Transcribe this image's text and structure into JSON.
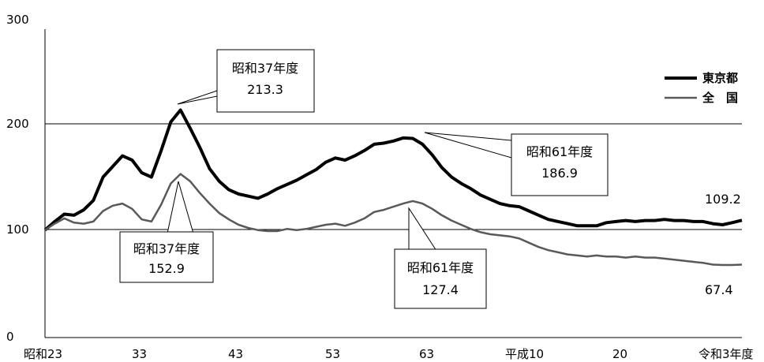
{
  "chart_data": {
    "type": "line",
    "title": "",
    "xlabel": "",
    "ylabel": "",
    "ylim": [
      0,
      300
    ],
    "y_ticks": [
      "0",
      "100",
      "200",
      "300"
    ],
    "x_ticks": [
      "昭和23",
      "33",
      "43",
      "53",
      "63",
      "平成10",
      "20",
      "令和3年度"
    ],
    "legend": {
      "placement": "top-right",
      "entries": [
        "東京都",
        "全　国"
      ]
    },
    "series": [
      {
        "name": "東京都",
        "color": "#000000",
        "values": [
          100,
          108,
          115,
          114,
          119,
          128,
          150,
          160,
          170,
          166,
          154,
          150,
          175,
          202,
          213.3,
          196,
          178,
          158,
          146,
          138,
          134,
          132,
          130,
          134,
          139,
          143,
          147,
          152,
          157,
          164,
          168,
          166,
          170,
          175,
          181,
          182,
          184,
          186.9,
          186.5,
          181,
          171,
          159,
          150,
          144,
          139,
          133,
          129,
          125,
          123,
          122,
          118,
          114,
          110,
          108,
          106,
          104,
          104,
          104,
          107,
          108,
          109,
          108,
          109,
          109,
          110,
          109,
          109,
          108,
          108,
          106,
          105,
          107,
          109.2
        ]
      },
      {
        "name": "全　国",
        "color": "#595959",
        "values": [
          100,
          106,
          111,
          107,
          106,
          108,
          118,
          123,
          125,
          120,
          110,
          108,
          124,
          144,
          152.9,
          146,
          135,
          125,
          116,
          110,
          105,
          102,
          100,
          99,
          99,
          101,
          100,
          101,
          103,
          105,
          106,
          104,
          107,
          111,
          117,
          119,
          122,
          125,
          127.4,
          125,
          120,
          114,
          109,
          105,
          101,
          98,
          96,
          95,
          94,
          92,
          88,
          84,
          81,
          79,
          77,
          76,
          75,
          76,
          75,
          75,
          74,
          75,
          74,
          74,
          73,
          72,
          71,
          70,
          69,
          67.4,
          67,
          67,
          67.4
        ]
      }
    ],
    "callouts": [
      {
        "line1": "昭和37年度",
        "line2": "213.3"
      },
      {
        "line1": "昭和61年度",
        "line2": "186.9"
      },
      {
        "line1": "昭和37年度",
        "line2": "152.9"
      },
      {
        "line1": "昭和61年度",
        "line2": "127.4"
      }
    ],
    "end_labels": [
      "109.2",
      "67.4"
    ]
  }
}
